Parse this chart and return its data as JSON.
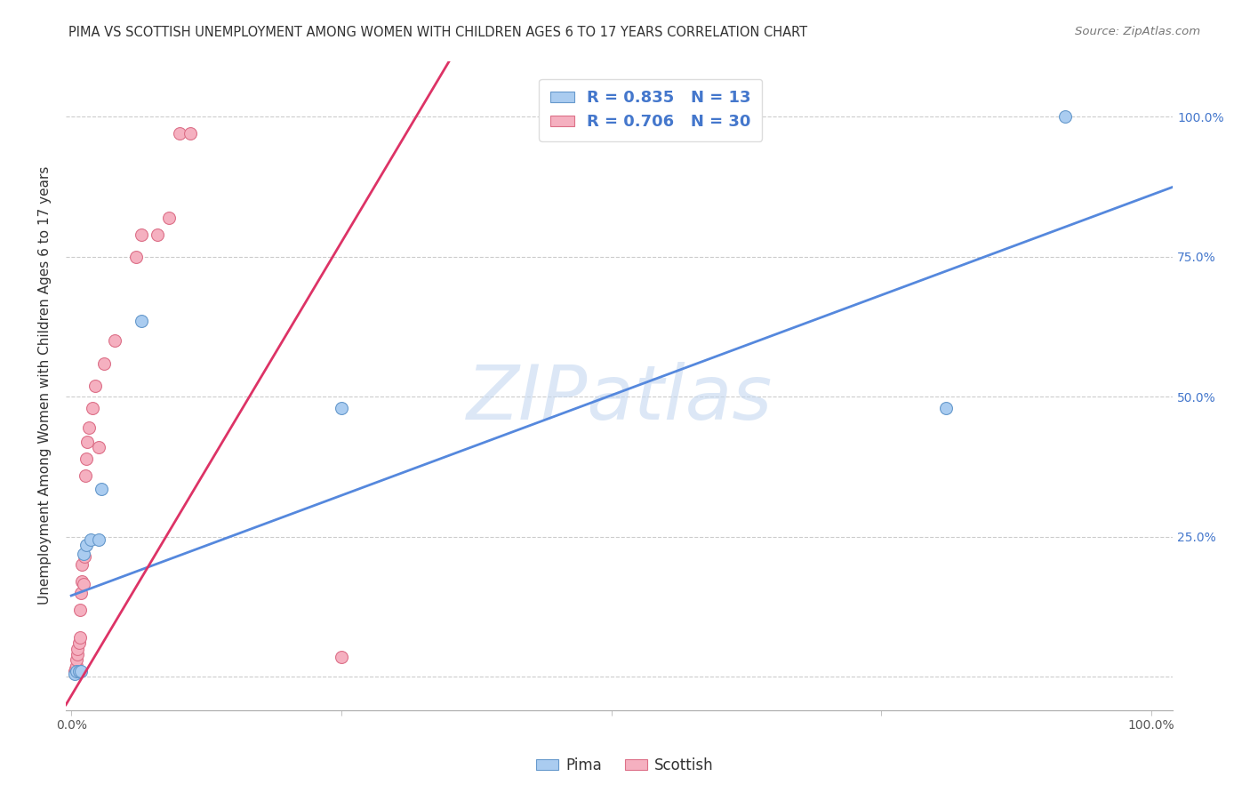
{
  "title": "PIMA VS SCOTTISH UNEMPLOYMENT AMONG WOMEN WITH CHILDREN AGES 6 TO 17 YEARS CORRELATION CHART",
  "source": "Source: ZipAtlas.com",
  "ylabel": "Unemployment Among Women with Children Ages 6 to 17 years",
  "xlim": [
    -0.005,
    1.02
  ],
  "ylim": [
    -0.06,
    1.1
  ],
  "background_color": "#ffffff",
  "grid_color": "#cccccc",
  "watermark": "ZIPatlas",
  "pima_color": "#aaccf0",
  "pima_edge_color": "#6699cc",
  "scottish_color": "#f5b0c0",
  "scottish_edge_color": "#dd7088",
  "pima_line_color": "#5588dd",
  "scottish_line_color": "#dd3366",
  "pima_R": 0.835,
  "pima_N": 13,
  "scottish_R": 0.706,
  "scottish_N": 30,
  "tick_fontsize": 10,
  "marker_size": 100,
  "pima_x": [
    0.003,
    0.005,
    0.007,
    0.009,
    0.011,
    0.014,
    0.018,
    0.025,
    0.028,
    0.065,
    0.25,
    0.81,
    0.92
  ],
  "pima_y": [
    0.005,
    0.01,
    0.01,
    0.01,
    0.22,
    0.235,
    0.245,
    0.245,
    0.335,
    0.635,
    0.48,
    0.48,
    1.0
  ],
  "scottish_x": [
    0.003,
    0.004,
    0.005,
    0.005,
    0.006,
    0.006,
    0.007,
    0.008,
    0.008,
    0.009,
    0.01,
    0.01,
    0.011,
    0.012,
    0.013,
    0.014,
    0.015,
    0.016,
    0.02,
    0.022,
    0.025,
    0.03,
    0.04,
    0.06,
    0.065,
    0.08,
    0.09,
    0.1,
    0.11,
    0.25
  ],
  "scottish_y": [
    0.01,
    0.015,
    0.02,
    0.03,
    0.04,
    0.05,
    0.06,
    0.07,
    0.12,
    0.15,
    0.17,
    0.2,
    0.165,
    0.215,
    0.36,
    0.39,
    0.42,
    0.445,
    0.48,
    0.52,
    0.41,
    0.56,
    0.6,
    0.75,
    0.79,
    0.79,
    0.82,
    0.97,
    0.97,
    0.035
  ],
  "pima_line_x0": 0.0,
  "pima_line_y0": 0.145,
  "pima_line_x1": 1.02,
  "pima_line_y1": 0.875,
  "scottish_line_x0": -0.005,
  "scottish_line_y0": -0.05,
  "scottish_line_x1": 0.35,
  "scottish_line_y1": 1.1
}
